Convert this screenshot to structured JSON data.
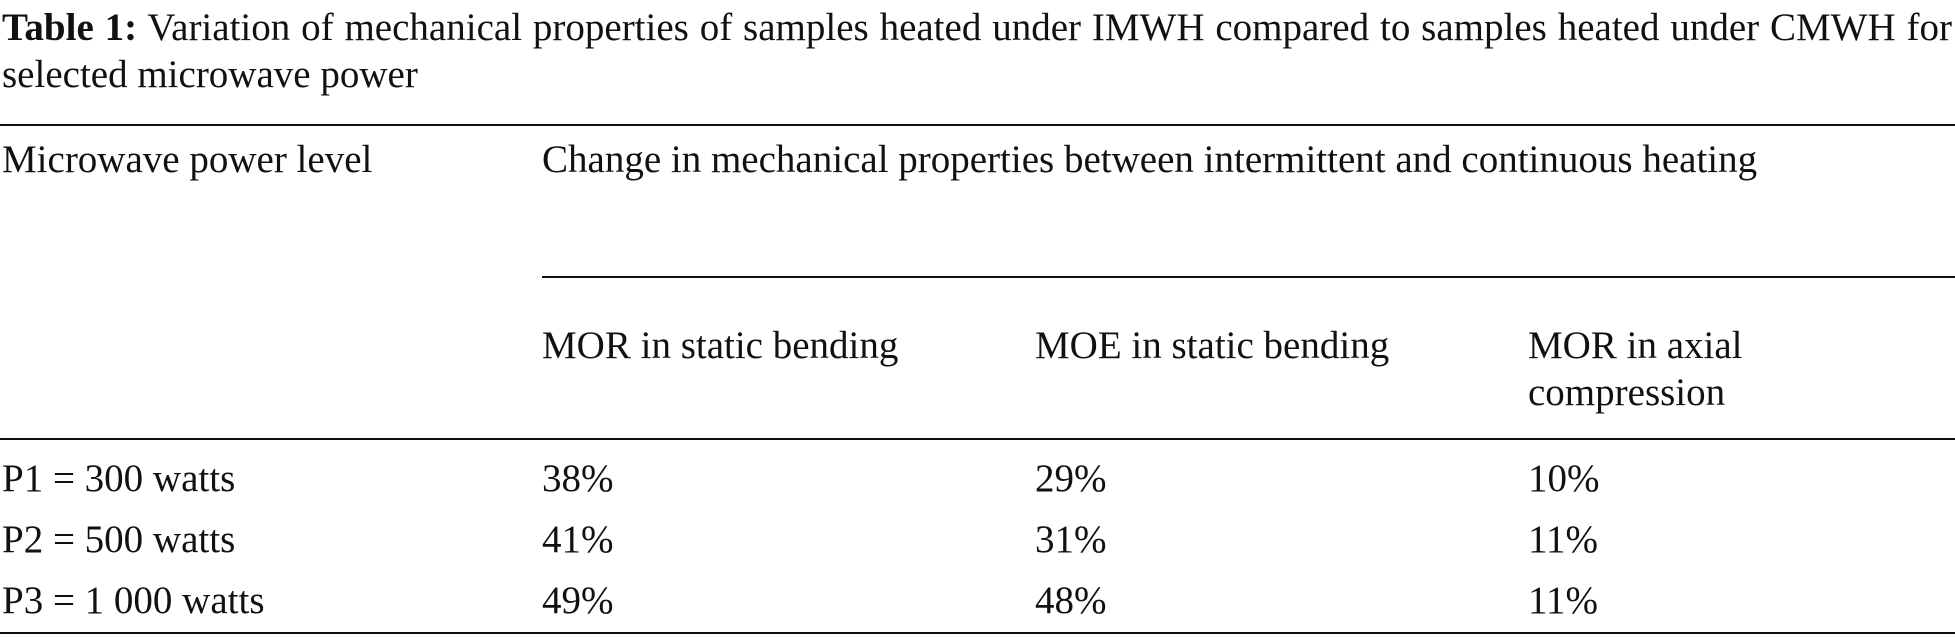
{
  "caption": {
    "label": "Table 1:",
    "text": "Variation of mechanical properties of samples heated under IMWH compared to samples heated under CMWH for selected microwave power"
  },
  "table": {
    "header": {
      "row_label": "Microwave power level",
      "span": "Change in mechanical properties between intermittent and continuous heating",
      "columns": [
        "MOR in static bending",
        "MOE in static bending",
        "MOR in axial compression"
      ]
    },
    "rows": [
      [
        "P1 = 300 watts",
        "38%",
        "29%",
        "10%"
      ],
      [
        "P2 = 500 watts",
        "41%",
        "31%",
        "11%"
      ],
      [
        "P3 = 1 000 watts",
        "49%",
        "48%",
        "11%"
      ]
    ]
  }
}
